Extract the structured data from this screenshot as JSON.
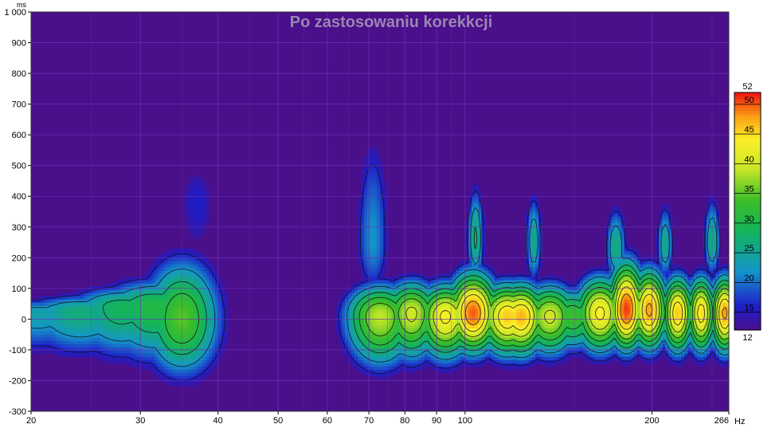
{
  "chart_data": {
    "type": "heatmap",
    "title": "Po zastosowaniu korekkcji",
    "xlabel": "Hz",
    "ylabel": "ms",
    "x_scale": "log",
    "xlim": [
      20,
      266
    ],
    "ylim": [
      -300,
      1000
    ],
    "x_ticks": [
      {
        "value": 20,
        "label": "20"
      },
      {
        "value": 30,
        "label": "30"
      },
      {
        "value": 40,
        "label": "40"
      },
      {
        "value": 50,
        "label": "50"
      },
      {
        "value": 60,
        "label": "60"
      },
      {
        "value": 70,
        "label": "70"
      },
      {
        "value": 80,
        "label": "80"
      },
      {
        "value": 90,
        "label": "90"
      },
      {
        "value": 100,
        "label": "100"
      },
      {
        "value": 200,
        "label": "200"
      },
      {
        "value": 266,
        "label": "266"
      }
    ],
    "y_ticks": [
      {
        "value": 1000,
        "label": "1 000"
      },
      {
        "value": 900,
        "label": "900"
      },
      {
        "value": 800,
        "label": "800"
      },
      {
        "value": 700,
        "label": "700"
      },
      {
        "value": 600,
        "label": "600"
      },
      {
        "value": 500,
        "label": "500"
      },
      {
        "value": 400,
        "label": "400"
      },
      {
        "value": 300,
        "label": "300"
      },
      {
        "value": 200,
        "label": "200"
      },
      {
        "value": 100,
        "label": "100"
      },
      {
        "value": 0,
        "label": "0"
      },
      {
        "value": -100,
        "label": "-100"
      },
      {
        "value": -200,
        "label": "-200"
      },
      {
        "value": -300,
        "label": "-300"
      }
    ],
    "grid": true,
    "colorbar": {
      "min": 12,
      "max": 52,
      "min_label": "12",
      "max_label": "52",
      "ticks": [
        {
          "value": 15,
          "label": "15"
        },
        {
          "value": 20,
          "label": "20"
        },
        {
          "value": 25,
          "label": "25"
        },
        {
          "value": 30,
          "label": "30"
        },
        {
          "value": 35,
          "label": "35"
        },
        {
          "value": 40,
          "label": "40"
        },
        {
          "value": 45,
          "label": "45"
        },
        {
          "value": 50,
          "label": "50"
        }
      ],
      "placement": "right"
    },
    "colors": {
      "background": "#4a0f8a",
      "grid": "#6a30b8",
      "title": "#9a86b2",
      "contour": "#111111"
    },
    "blobs": [
      {
        "f": 20.5,
        "t": 20,
        "sf": 0.1,
        "stA": 45,
        "stB": 120,
        "peak": 24
      },
      {
        "f": 24,
        "t": 25,
        "sf": 0.09,
        "stA": 50,
        "stB": 130,
        "peak": 27
      },
      {
        "f": 28,
        "t": 40,
        "sf": 0.08,
        "stA": 60,
        "stB": 150,
        "peak": 29
      },
      {
        "f": 31.5,
        "t": 40,
        "sf": 0.08,
        "stA": 80,
        "stB": 160,
        "peak": 31
      },
      {
        "f": 35,
        "t": 0,
        "sf": 0.055,
        "stA": 170,
        "stB": 160,
        "peak": 35
      },
      {
        "f": 37,
        "t": 380,
        "sf": 0.035,
        "stA": 150,
        "stB": 200,
        "peak": 16
      },
      {
        "f": 71,
        "t": 250,
        "sf": 0.025,
        "stA": 320,
        "stB": 160,
        "peak": 22
      },
      {
        "f": 73,
        "t": 10,
        "sf": 0.05,
        "stA": 90,
        "stB": 140,
        "peak": 39
      },
      {
        "f": 82,
        "t": 20,
        "sf": 0.04,
        "stA": 90,
        "stB": 130,
        "peak": 40
      },
      {
        "f": 93,
        "t": 10,
        "sf": 0.04,
        "stA": 90,
        "stB": 120,
        "peak": 44
      },
      {
        "f": 103,
        "t": 20,
        "sf": 0.035,
        "stA": 110,
        "stB": 110,
        "peak": 50
      },
      {
        "f": 104,
        "t": 260,
        "sf": 0.012,
        "stA": 150,
        "stB": 120,
        "peak": 28
      },
      {
        "f": 117,
        "t": 10,
        "sf": 0.04,
        "stA": 90,
        "stB": 110,
        "peak": 46
      },
      {
        "f": 123,
        "t": 10,
        "sf": 0.035,
        "stA": 90,
        "stB": 110,
        "peak": 47
      },
      {
        "f": 129,
        "t": 250,
        "sf": 0.012,
        "stA": 140,
        "stB": 120,
        "peak": 26
      },
      {
        "f": 137,
        "t": 10,
        "sf": 0.04,
        "stA": 90,
        "stB": 110,
        "peak": 40
      },
      {
        "f": 149,
        "t": 10,
        "sf": 0.04,
        "stA": 80,
        "stB": 100,
        "peak": 34
      },
      {
        "f": 165,
        "t": 20,
        "sf": 0.035,
        "stA": 100,
        "stB": 110,
        "peak": 44
      },
      {
        "f": 182,
        "t": 30,
        "sf": 0.025,
        "stA": 130,
        "stB": 110,
        "peak": 51
      },
      {
        "f": 198,
        "t": 30,
        "sf": 0.025,
        "stA": 110,
        "stB": 110,
        "peak": 48
      },
      {
        "f": 220,
        "t": 20,
        "sf": 0.022,
        "stA": 100,
        "stB": 110,
        "peak": 46
      },
      {
        "f": 240,
        "t": 20,
        "sf": 0.02,
        "stA": 100,
        "stB": 110,
        "peak": 45
      },
      {
        "f": 262,
        "t": 20,
        "sf": 0.02,
        "stA": 100,
        "stB": 110,
        "peak": 48
      },
      {
        "f": 175,
        "t": 230,
        "sf": 0.015,
        "stA": 120,
        "stB": 100,
        "peak": 27
      },
      {
        "f": 210,
        "t": 240,
        "sf": 0.012,
        "stA": 120,
        "stB": 100,
        "peak": 26
      },
      {
        "f": 250,
        "t": 250,
        "sf": 0.012,
        "stA": 130,
        "stB": 100,
        "peak": 27
      }
    ],
    "contour_levels": [
      16,
      22,
      27,
      31,
      35,
      39,
      43,
      47
    ]
  }
}
